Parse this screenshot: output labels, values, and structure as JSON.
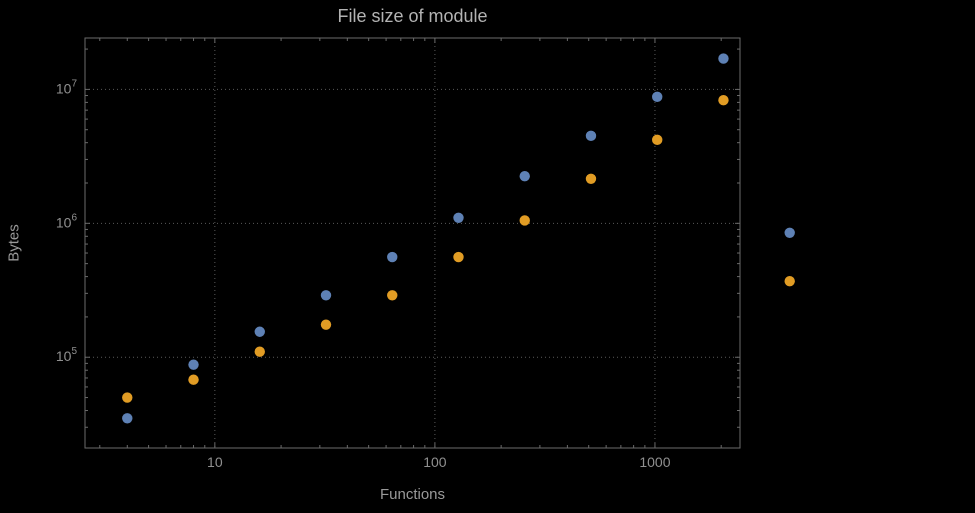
{
  "chart_data": {
    "type": "scatter",
    "title": "File size of module",
    "xlabel": "Functions",
    "ylabel": "Bytes",
    "x_scale": "log",
    "y_scale": "log",
    "xlim": [
      2.57,
      2435
    ],
    "ylim": [
      21000,
      24200000
    ],
    "grid": "dotted",
    "legend": "none",
    "x_ticks": [
      {
        "value": 10,
        "label": "10"
      },
      {
        "value": 100,
        "label": "100"
      },
      {
        "value": 1000,
        "label": "1000"
      }
    ],
    "y_ticks": [
      {
        "value": 100000,
        "label": "10^5"
      },
      {
        "value": 1000000,
        "label": "10^6"
      },
      {
        "value": 10000000,
        "label": "10^7"
      }
    ],
    "x": [
      4,
      8,
      16,
      32,
      64,
      128,
      256,
      512,
      1024,
      2048,
      4096
    ],
    "series": [
      {
        "name": "series-1-blue",
        "color": "#5E81B5",
        "values": [
          35000,
          88000,
          155000,
          290000,
          560000,
          1100000,
          2250000,
          4500000,
          8800000,
          17000000,
          850000
        ]
      },
      {
        "name": "series-2-orange",
        "color": "#E19C24",
        "values": [
          50000,
          68000,
          110000,
          175000,
          290000,
          560000,
          1050000,
          2150000,
          4200000,
          8300000,
          370000
        ]
      }
    ],
    "colors": {
      "background": "#000000",
      "frame": "#6b6b6b",
      "grid": "#5a5a5a",
      "title_text": "#b3b3b3",
      "axis_label_text": "#999999",
      "tick_label_text": "#909090"
    }
  }
}
